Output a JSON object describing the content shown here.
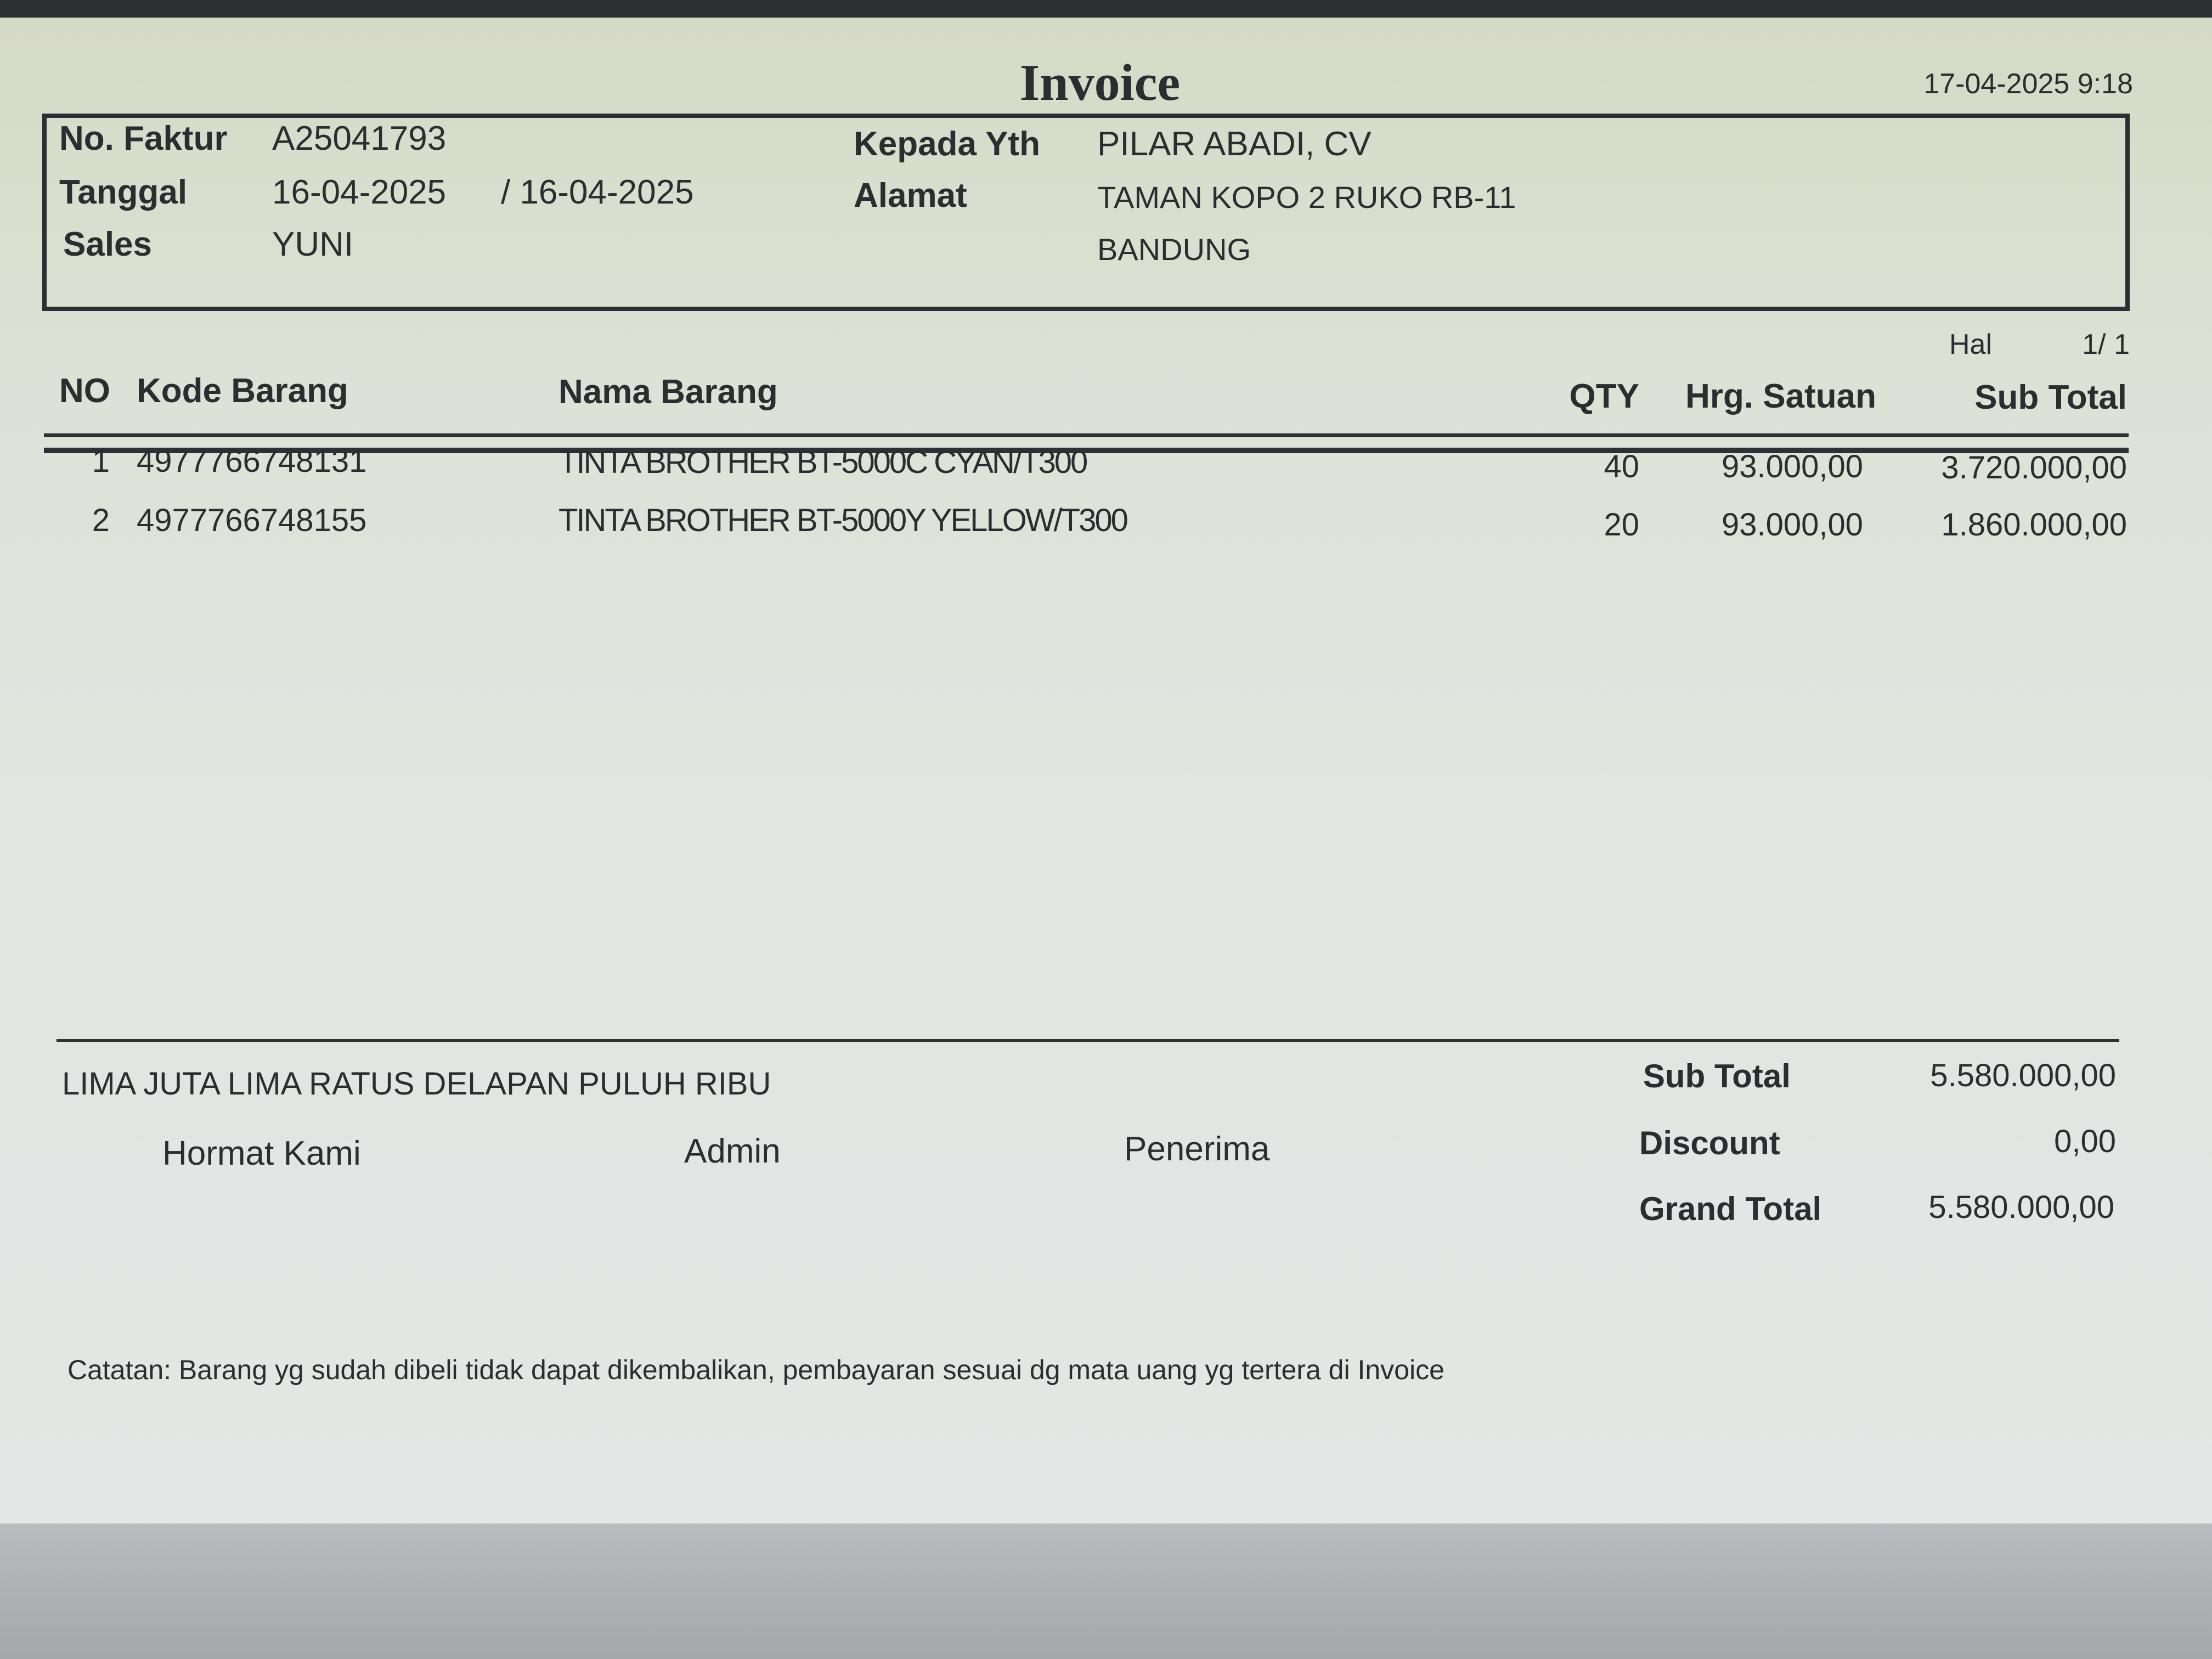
{
  "title": "Invoice",
  "printed_at": "17-04-2025 9:18",
  "header": {
    "no_faktur_label": "No. Faktur",
    "no_faktur": "A25041793",
    "tanggal_label": "Tanggal",
    "tanggal": "16-04-2025",
    "tanggal_2": "/ 16-04-2025",
    "sales_label": "Sales",
    "sales": "YUNI",
    "kepada_label": "Kepada Yth",
    "kepada": "PILAR ABADI, CV",
    "alamat_label": "Alamat",
    "alamat_1": "TAMAN KOPO 2 RUKO RB-11",
    "alamat_2": "BANDUNG"
  },
  "page": {
    "label": "Hal",
    "value": "1/ 1"
  },
  "table": {
    "columns": [
      "NO",
      "Kode Barang",
      "Nama Barang",
      "QTY",
      "Hrg. Satuan",
      "Sub Total"
    ],
    "rows": [
      {
        "no": "1",
        "kode": "4977766748131",
        "nama": "TINTA BROTHER BT-5000C CYAN/T300",
        "qty": "40",
        "harga": "93.000,00",
        "subtotal": "3.720.000,00"
      },
      {
        "no": "2",
        "kode": "4977766748155",
        "nama": "TINTA BROTHER BT-5000Y YELLOW/T300",
        "qty": "20",
        "harga": "93.000,00",
        "subtotal": "1.860.000,00"
      }
    ]
  },
  "footer": {
    "terbilang": "LIMA JUTA LIMA RATUS DELAPAN PULUH RIBU",
    "hormat_kami": "Hormat Kami",
    "admin": "Admin",
    "penerima": "Penerima",
    "subtotal_label": "Sub Total",
    "subtotal": "5.580.000,00",
    "discount_label": "Discount",
    "discount": "0,00",
    "grand_total_label": "Grand Total",
    "grand_total": "5.580.000,00",
    "catatan": "Catatan: Barang yg sudah dibeli tidak dapat dikembalikan, pembayaran sesuai dg mata uang yg tertera di Invoice"
  }
}
